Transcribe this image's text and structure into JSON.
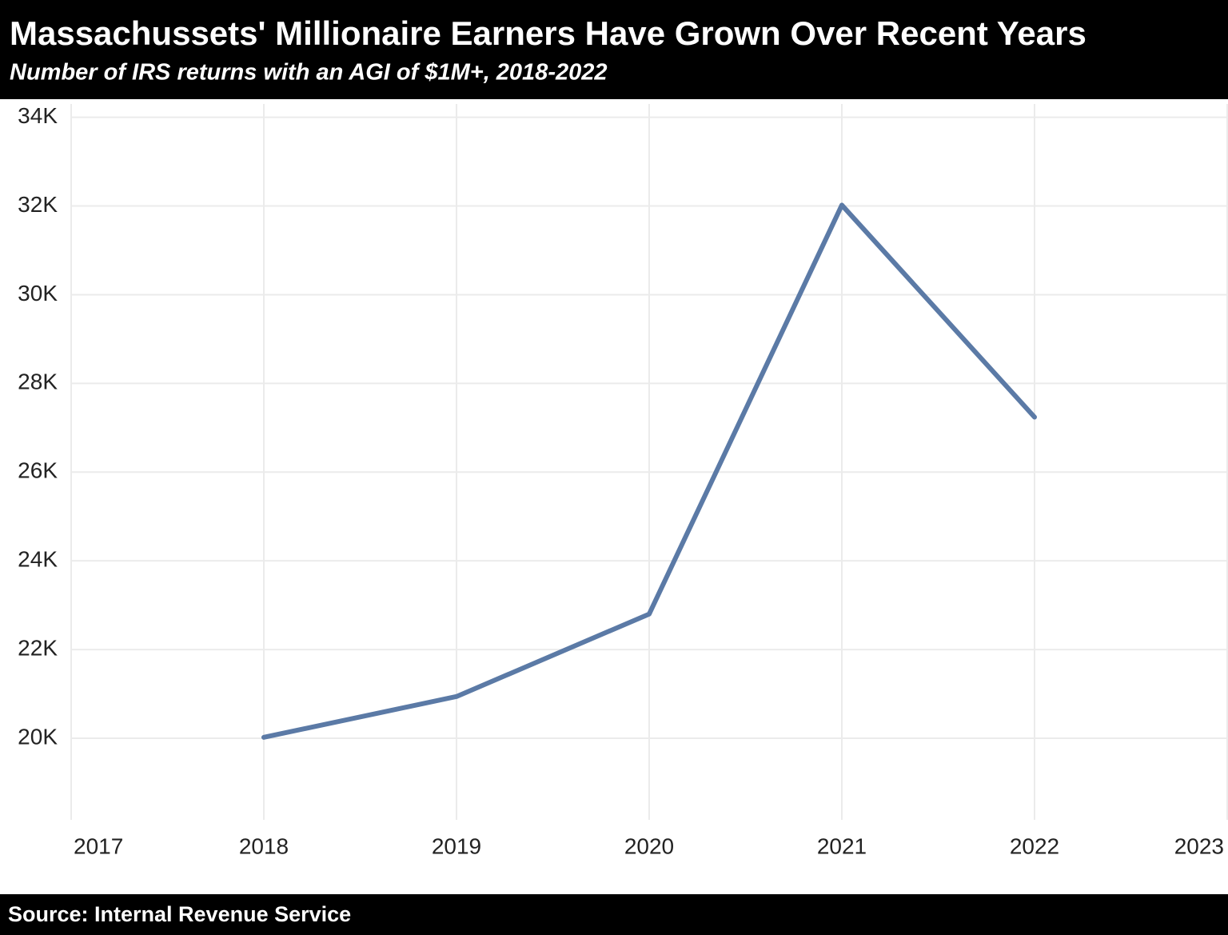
{
  "chart_data": {
    "type": "line",
    "title": "Massachussets' Millionaire Earners Have Grown Over Recent Years",
    "subtitle": "Number of IRS returns with an AGI of $1M+, 2018-2022",
    "source": "Source: Internal Revenue Service",
    "x": [
      2018,
      2019,
      2020,
      2021,
      2022
    ],
    "series": [
      {
        "color": "#5b7aa6",
        "values": [
          20020,
          20940,
          22800,
          32020,
          27240
        ]
      }
    ],
    "xlim": [
      2017,
      2023
    ],
    "xticks": [
      2017,
      2018,
      2019,
      2020,
      2021,
      2022,
      2023
    ],
    "ylim": [
      18160,
      34300
    ],
    "yticks": [
      {
        "value": 20000,
        "label": "20K"
      },
      {
        "value": 22000,
        "label": "22K"
      },
      {
        "value": 24000,
        "label": "24K"
      },
      {
        "value": 26000,
        "label": "26K"
      },
      {
        "value": 28000,
        "label": "28K"
      },
      {
        "value": 30000,
        "label": "30K"
      },
      {
        "value": 32000,
        "label": "32K"
      },
      {
        "value": 34000,
        "label": "34K"
      }
    ],
    "grid": true
  }
}
